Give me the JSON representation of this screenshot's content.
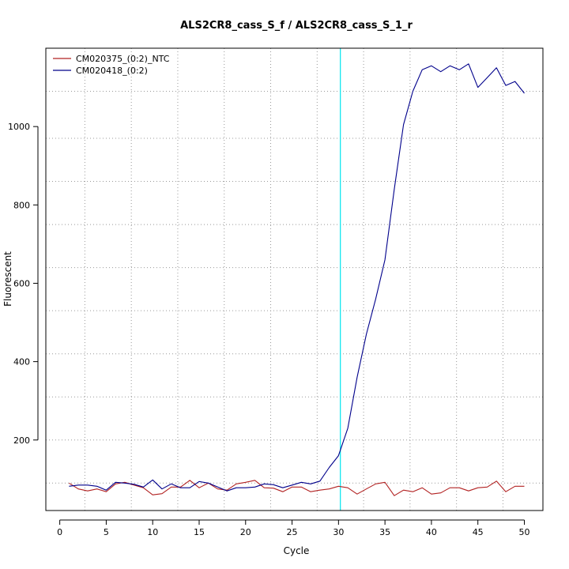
{
  "chart_data": {
    "type": "line",
    "title": "ALS2CR8_cass_S_f / ALS2CR8_cass_S_1_r",
    "xlabel": "Cycle",
    "ylabel": "Fluorescent",
    "xlim": [
      -1.5,
      52
    ],
    "ylim": [
      20,
      1200
    ],
    "x_ticks": [
      0,
      5,
      10,
      15,
      20,
      25,
      30,
      35,
      40,
      45,
      50
    ],
    "y_ticks": [
      200,
      400,
      600,
      800,
      1000
    ],
    "grid": true,
    "grid_x": [
      2.7,
      7.7,
      12.7,
      17.7,
      22.7,
      27.7,
      32.7,
      37.7,
      42.7,
      47.7
    ],
    "grid_y": [
      90,
      200,
      310,
      420,
      530,
      640,
      750,
      860,
      970,
      1090
    ],
    "threshold_cycle": 30.2,
    "threshold_color": "#00e5ee",
    "legend_position": "top-left",
    "x": [
      1,
      2,
      3,
      4,
      5,
      6,
      7,
      8,
      9,
      10,
      11,
      12,
      13,
      14,
      15,
      16,
      17,
      18,
      19,
      20,
      21,
      22,
      23,
      24,
      25,
      26,
      27,
      28,
      29,
      30,
      31,
      32,
      33,
      34,
      35,
      36,
      37,
      38,
      39,
      40,
      41,
      42,
      43,
      44,
      45,
      46,
      47,
      48,
      49,
      50
    ],
    "series": [
      {
        "name": "CM020375_(0:2)_NTC",
        "color": "#b22222",
        "values": [
          90,
          75,
          70,
          75,
          68,
          88,
          92,
          85,
          78,
          60,
          63,
          80,
          80,
          97,
          78,
          90,
          75,
          72,
          88,
          92,
          97,
          78,
          77,
          68,
          80,
          80,
          68,
          72,
          75,
          82,
          78,
          62,
          75,
          88,
          92,
          58,
          72,
          68,
          78,
          62,
          65,
          78,
          78,
          70,
          78,
          80,
          95,
          68,
          82,
          82
        ]
      },
      {
        "name": "CM020418_(0:2)",
        "color": "#00008b",
        "values": [
          82,
          85,
          85,
          82,
          72,
          92,
          90,
          87,
          80,
          98,
          75,
          88,
          78,
          78,
          94,
          90,
          80,
          70,
          78,
          78,
          80,
          88,
          86,
          78,
          85,
          92,
          88,
          95,
          130,
          160,
          230,
          360,
          470,
          560,
          660,
          840,
          1005,
          1090,
          1145,
          1155,
          1140,
          1155,
          1145,
          1160,
          1100,
          1125,
          1150,
          1105,
          1115,
          1085
        ]
      }
    ]
  }
}
